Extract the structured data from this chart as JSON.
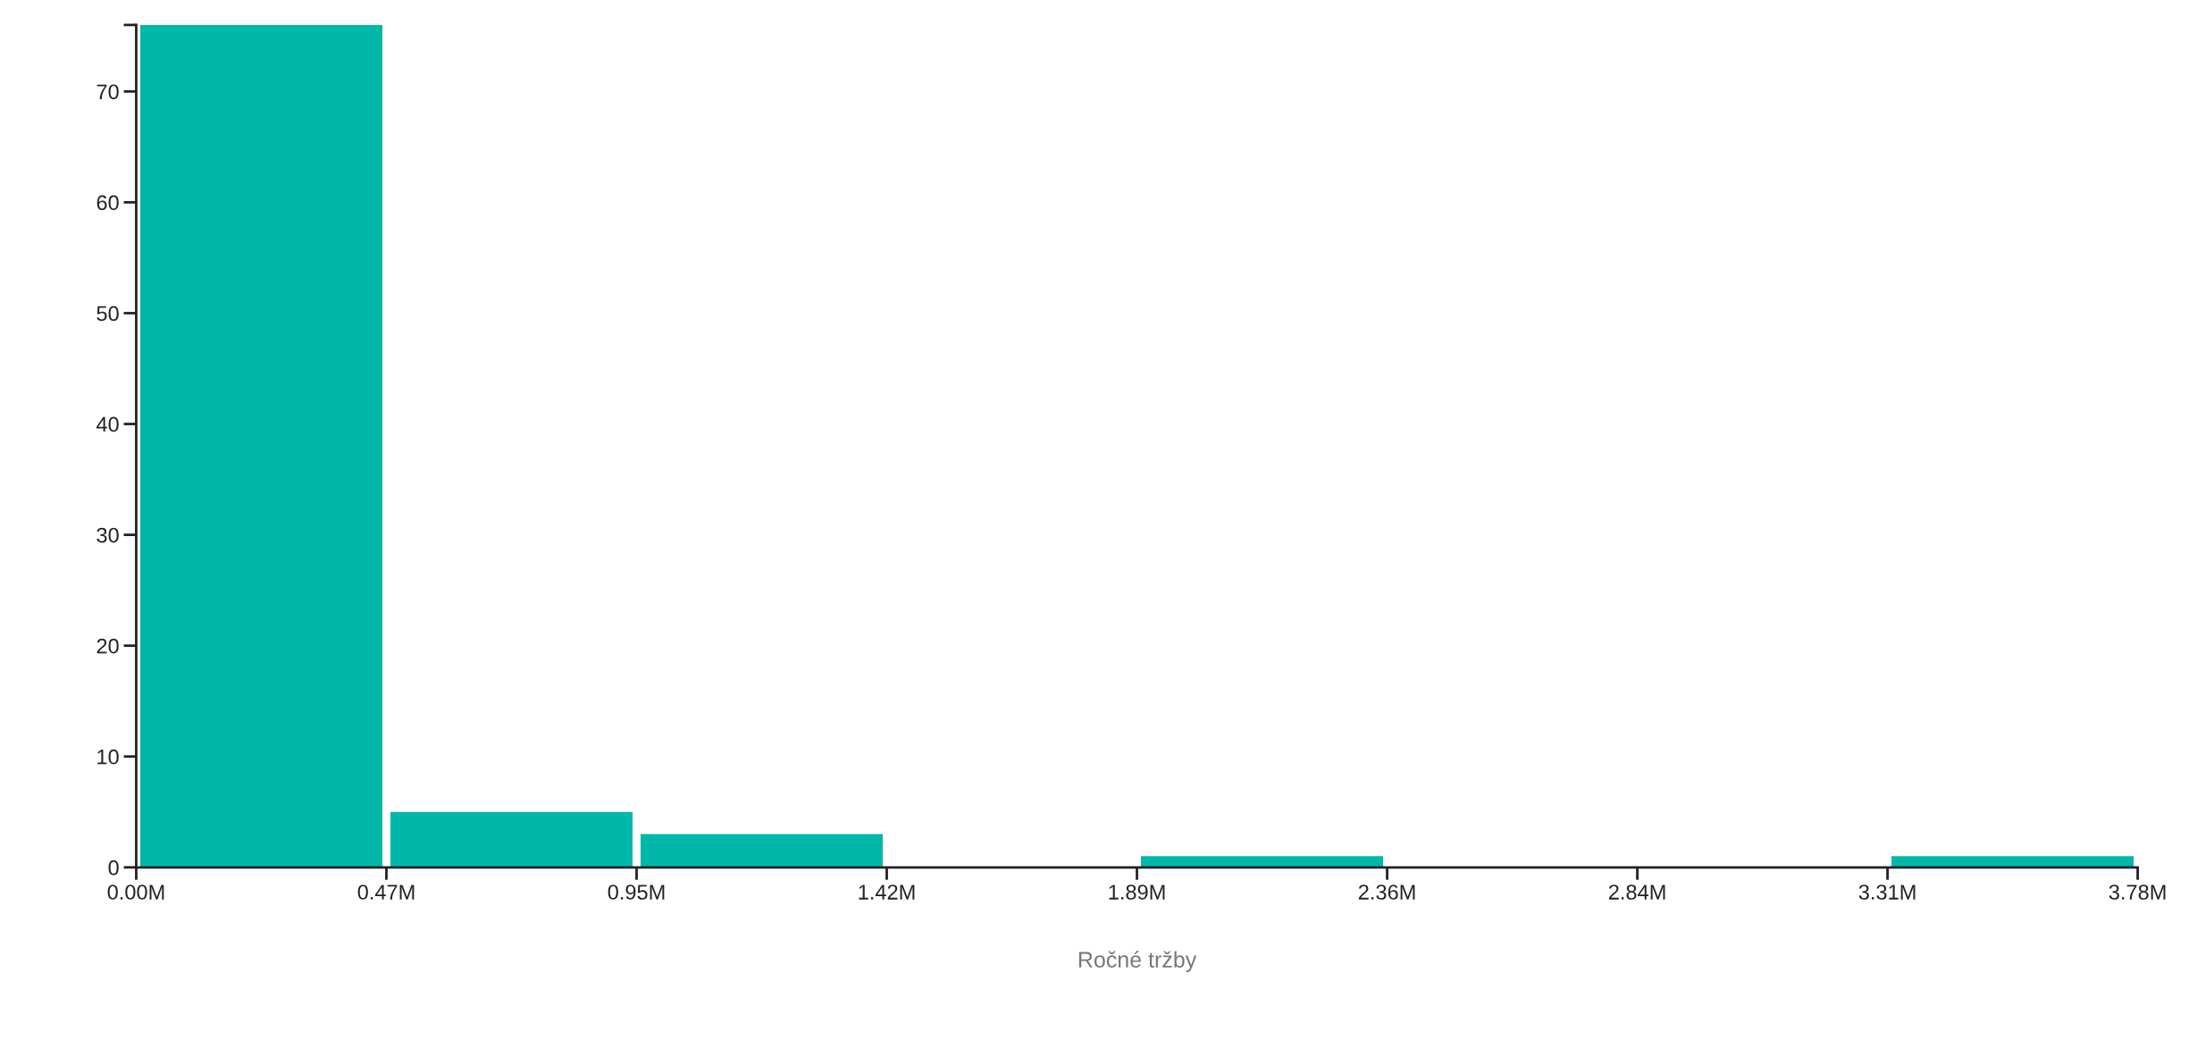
{
  "chart_data": {
    "type": "histogram",
    "xlabel": "Ročné tržby",
    "bins": [
      0,
      0.4725,
      0.945,
      1.4175,
      1.89,
      2.3625,
      2.835,
      3.3075,
      3.78
    ],
    "values": [
      76,
      5,
      3,
      0,
      1,
      0,
      0,
      1
    ],
    "color": "#00b8a9",
    "xlim": [
      0,
      3.78
    ],
    "xticks": [
      {
        "value": 0,
        "label": "0.00M"
      },
      {
        "value": 0.4725,
        "label": "0.47M"
      },
      {
        "value": 0.945,
        "label": "0.95M"
      },
      {
        "value": 1.4175,
        "label": "1.42M"
      },
      {
        "value": 1.89,
        "label": "1.89M"
      },
      {
        "value": 2.3625,
        "label": "2.36M"
      },
      {
        "value": 2.835,
        "label": "2.84M"
      },
      {
        "value": 3.3075,
        "label": "3.31M"
      },
      {
        "value": 3.78,
        "label": "3.78M"
      }
    ],
    "ylim": [
      0,
      76
    ],
    "yticks": [
      0,
      10,
      20,
      30,
      40,
      50,
      60,
      70,
      {
        "value": 76,
        "label": null
      }
    ],
    "grid": false
  }
}
